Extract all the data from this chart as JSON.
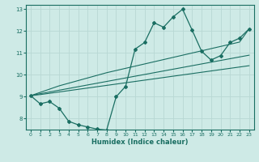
{
  "xlabel": "Humidex (Indice chaleur)",
  "ylabel": "",
  "xlim": [
    -0.5,
    23.5
  ],
  "ylim": [
    7.5,
    13.2
  ],
  "yticks": [
    8,
    9,
    10,
    11,
    12,
    13
  ],
  "xticks": [
    0,
    1,
    2,
    3,
    4,
    5,
    6,
    7,
    8,
    9,
    10,
    11,
    12,
    13,
    14,
    15,
    16,
    17,
    18,
    19,
    20,
    21,
    22,
    23
  ],
  "bg_color": "#ceeae6",
  "grid_color": "#b8d8d4",
  "line_color": "#1a6e62",
  "x": [
    0,
    1,
    2,
    3,
    4,
    5,
    6,
    7,
    8,
    9,
    10,
    11,
    12,
    13,
    14,
    15,
    16,
    17,
    18,
    19,
    20,
    21,
    22,
    23
  ],
  "y_main": [
    9.05,
    8.68,
    8.78,
    8.48,
    7.88,
    7.72,
    7.62,
    7.52,
    7.48,
    9.0,
    9.48,
    11.18,
    11.48,
    12.38,
    12.18,
    12.65,
    13.0,
    12.05,
    11.08,
    10.68,
    10.88,
    11.48,
    11.68,
    12.1
  ],
  "y_line1": [
    9.05,
    9.1,
    9.16,
    9.22,
    9.28,
    9.34,
    9.4,
    9.46,
    9.52,
    9.58,
    9.64,
    9.7,
    9.76,
    9.82,
    9.88,
    9.94,
    10.0,
    10.06,
    10.12,
    10.18,
    10.24,
    10.3,
    10.36,
    10.42
  ],
  "y_line2": [
    9.05,
    9.14,
    9.22,
    9.3,
    9.38,
    9.46,
    9.54,
    9.62,
    9.7,
    9.78,
    9.86,
    9.94,
    10.02,
    10.1,
    10.18,
    10.26,
    10.34,
    10.42,
    10.5,
    10.58,
    10.66,
    10.74,
    10.82,
    10.9
  ],
  "y_line3": [
    9.05,
    9.2,
    9.35,
    9.5,
    9.62,
    9.74,
    9.86,
    9.98,
    10.1,
    10.2,
    10.3,
    10.4,
    10.5,
    10.6,
    10.7,
    10.8,
    10.9,
    11.0,
    11.1,
    11.2,
    11.3,
    11.4,
    11.5,
    12.1
  ]
}
